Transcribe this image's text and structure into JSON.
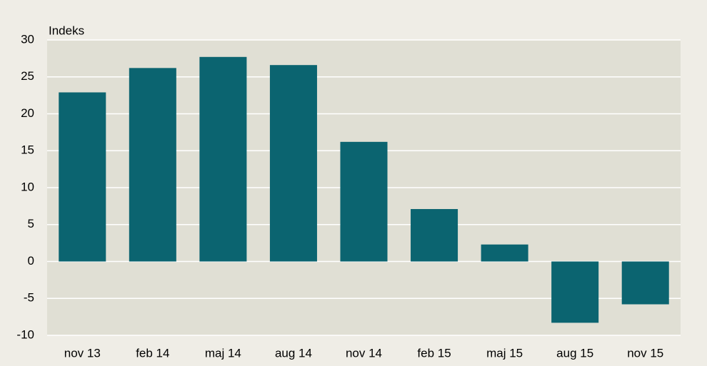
{
  "chart_data": {
    "type": "bar",
    "y_label": "Indeks",
    "categories": [
      "nov 13",
      "feb 14",
      "maj 14",
      "aug 14",
      "nov 14",
      "feb 15",
      "maj 15",
      "aug 15",
      "nov 15"
    ],
    "values": [
      22.9,
      26.2,
      27.7,
      26.6,
      16.2,
      7.1,
      2.3,
      -8.3,
      -5.8
    ],
    "color": "#0b6470",
    "ylim": [
      -10,
      30
    ],
    "yticks": [
      -10,
      -5,
      0,
      5,
      10,
      15,
      20,
      25,
      30
    ],
    "grid": true
  }
}
